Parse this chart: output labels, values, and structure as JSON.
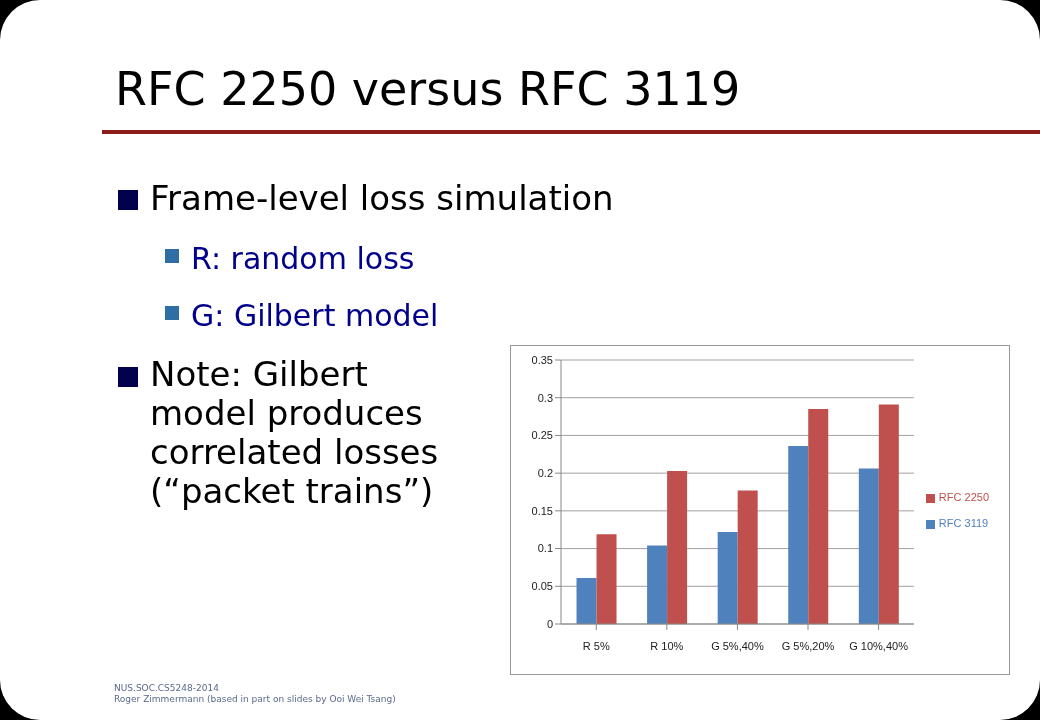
{
  "chart_data": {
    "type": "bar",
    "title": "RFC 2250 versus RFC 3119",
    "annotations": [
      "Frame-level loss simulation",
      "R: random loss",
      "G: Gilbert model",
      "Note: Gilbert model produces correlated losses (“packet trains”)",
      "NUS.SOC.CS5248-2014",
      "Roger Zimmermann (based in part on slides by Ooi Wei Tsang)"
    ],
    "categories": [
      "R 5%",
      "R 10%",
      "G 5%,40%",
      "G 5%,20%",
      "G 10%,40%"
    ],
    "series": [
      {
        "name": "RFC 3119",
        "color": "#4f81bd",
        "values": [
          0.061,
          0.104,
          0.122,
          0.236,
          0.206
        ]
      },
      {
        "name": "RFC 2250",
        "color": "#c0504d",
        "values": [
          0.119,
          0.203,
          0.177,
          0.285,
          0.291
        ]
      }
    ],
    "ylim": [
      0,
      0.35
    ],
    "yticks": [
      0,
      0.05,
      0.1,
      0.15,
      0.2,
      0.25,
      0.3,
      0.35
    ],
    "grid": "y",
    "legend": "right"
  }
}
